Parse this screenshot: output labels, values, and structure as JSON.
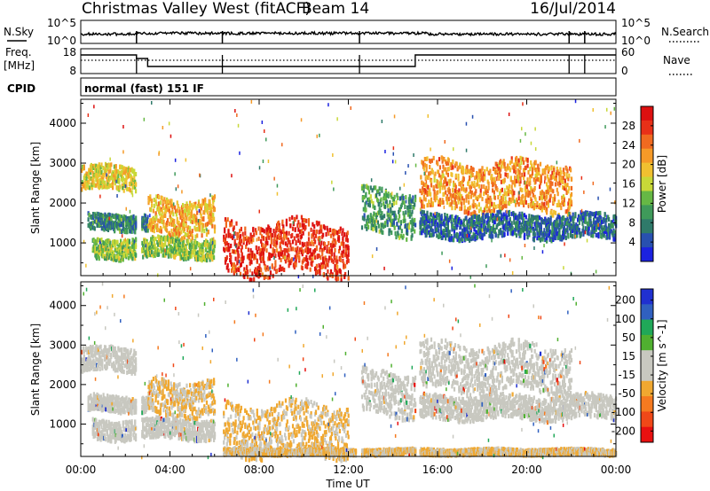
{
  "header": {
    "station": "Christmas Valley West (fitACF)",
    "beam": "Beam 14",
    "date": "16/Jul/2014"
  },
  "panels": {
    "left_labels": {
      "nsky": "N.Sky",
      "freq": "Freq.",
      "freq_unit": "[MHz]",
      "cpid": "CPID"
    },
    "right_labels": {
      "nsearch": "N.Search",
      "nave": "Nave"
    },
    "noise_ticks": {
      "left_top": "10^5",
      "left_bottom": "10^0",
      "right_top": "10^5",
      "right_bottom": "10^0"
    },
    "freq_ticks": {
      "left_top": "18",
      "left_bottom": "8",
      "right_top": "60",
      "right_bottom": "0"
    },
    "cpid_text": "normal (fast) 151 IF"
  },
  "chart_data": [
    {
      "type": "heatmap",
      "title": "Power",
      "xlabel": "Time UT",
      "ylabel": "Slant Range [km]",
      "x_ticks": [
        "00:00",
        "04:00",
        "08:00",
        "12:00",
        "16:00",
        "20:00",
        "00:00"
      ],
      "x_range_hours": [
        0,
        24
      ],
      "y_ticks": [
        1000,
        2000,
        3000,
        4000
      ],
      "y_range_km": [
        180,
        4600
      ],
      "colorbar": {
        "label": "Power [dB]",
        "ticks": [
          4,
          8,
          12,
          16,
          20,
          24,
          28
        ],
        "range": [
          0,
          32
        ],
        "colors": [
          "#1b22e0",
          "#2850b0",
          "#2f7a6a",
          "#3f9a5a",
          "#66b845",
          "#c8d838",
          "#f0c030",
          "#f59a28",
          "#f06a20",
          "#e83018",
          "#dd1010"
        ]
      },
      "echo_regions": [
        {
          "name": "early far range band",
          "t": [
            0.0,
            2.5
          ],
          "range_km": [
            2300,
            2900
          ],
          "power_dB": 18
        },
        {
          "name": "early mid range band",
          "t": [
            0.3,
            3.0
          ],
          "range_km": [
            1300,
            1700
          ],
          "power_dB": 8
        },
        {
          "name": "early near range band",
          "t": [
            0.5,
            6.0
          ],
          "range_km": [
            600,
            1100
          ],
          "power_dB": 14
        },
        {
          "name": "morning rising band",
          "t": [
            3.0,
            6.0
          ],
          "range_km": [
            1200,
            2100
          ],
          "power_dB": 20
        },
        {
          "name": "strong morning near range",
          "t": [
            6.3,
            12.0
          ],
          "range_km": [
            200,
            1500
          ],
          "power_dB": 28
        },
        {
          "name": "afternoon descending band",
          "t": [
            12.5,
            15.0
          ],
          "range_km": [
            1200,
            2300
          ],
          "power_dB": 10
        },
        {
          "name": "late far range band",
          "t": [
            15.0,
            22.0
          ],
          "range_km": [
            1800,
            3000
          ],
          "power_dB": 22
        },
        {
          "name": "late mid range band",
          "t": [
            15.0,
            24.0
          ],
          "range_km": [
            1100,
            1700
          ],
          "power_dB": 6
        }
      ]
    },
    {
      "type": "heatmap",
      "title": "Velocity",
      "xlabel": "Time UT",
      "ylabel": "Slant Range [km]",
      "x_ticks": [
        "00:00",
        "04:00",
        "08:00",
        "12:00",
        "16:00",
        "20:00",
        "00:00"
      ],
      "x_range_hours": [
        0,
        24
      ],
      "y_ticks": [
        1000,
        2000,
        3000,
        4000
      ],
      "y_range_km": [
        180,
        4600
      ],
      "colorbar": {
        "label": "Velocity [m s^-1]",
        "ticks": [
          "200",
          "100",
          "50",
          "15",
          "-15",
          "-50",
          "-100",
          "-200"
        ],
        "range": [
          -250,
          250
        ],
        "colors": [
          "#e81010",
          "#f04818",
          "#f57a20",
          "#f0a830",
          "#c8c8c0",
          "#c8c8c0",
          "#50b030",
          "#20a858",
          "#3060c0",
          "#2030d0"
        ]
      },
      "echo_regions": [
        {
          "name": "early far range ground scatter",
          "t": [
            0.0,
            2.5
          ],
          "range_km": [
            2300,
            2900
          ],
          "velocity": 0
        },
        {
          "name": "early mid range mixed",
          "t": [
            0.3,
            3.0
          ],
          "range_km": [
            1300,
            1700
          ],
          "velocity": 0
        },
        {
          "name": "early near range ground scatter",
          "t": [
            0.5,
            6.0
          ],
          "range_km": [
            600,
            1100
          ],
          "velocity": 0
        },
        {
          "name": "morning rising band",
          "t": [
            3.0,
            6.0
          ],
          "range_km": [
            1200,
            2100
          ],
          "velocity": -50
        },
        {
          "name": "morning near range flow",
          "t": [
            6.3,
            12.0
          ],
          "range_km": [
            200,
            1500
          ],
          "velocity": -60
        },
        {
          "name": "afternoon descending ground scatter",
          "t": [
            12.5,
            15.0
          ],
          "range_km": [
            1200,
            2300
          ],
          "velocity": 0
        },
        {
          "name": "late far range ground scatter",
          "t": [
            15.0,
            22.0
          ],
          "range_km": [
            1800,
            3000
          ],
          "velocity": 0
        },
        {
          "name": "late mid range mixed",
          "t": [
            15.0,
            24.0
          ],
          "range_km": [
            1100,
            1700
          ],
          "velocity": 0
        },
        {
          "name": "lowest range gates",
          "t": [
            6.3,
            24.0
          ],
          "range_km": [
            200,
            350
          ],
          "velocity": -50
        }
      ]
    }
  ]
}
